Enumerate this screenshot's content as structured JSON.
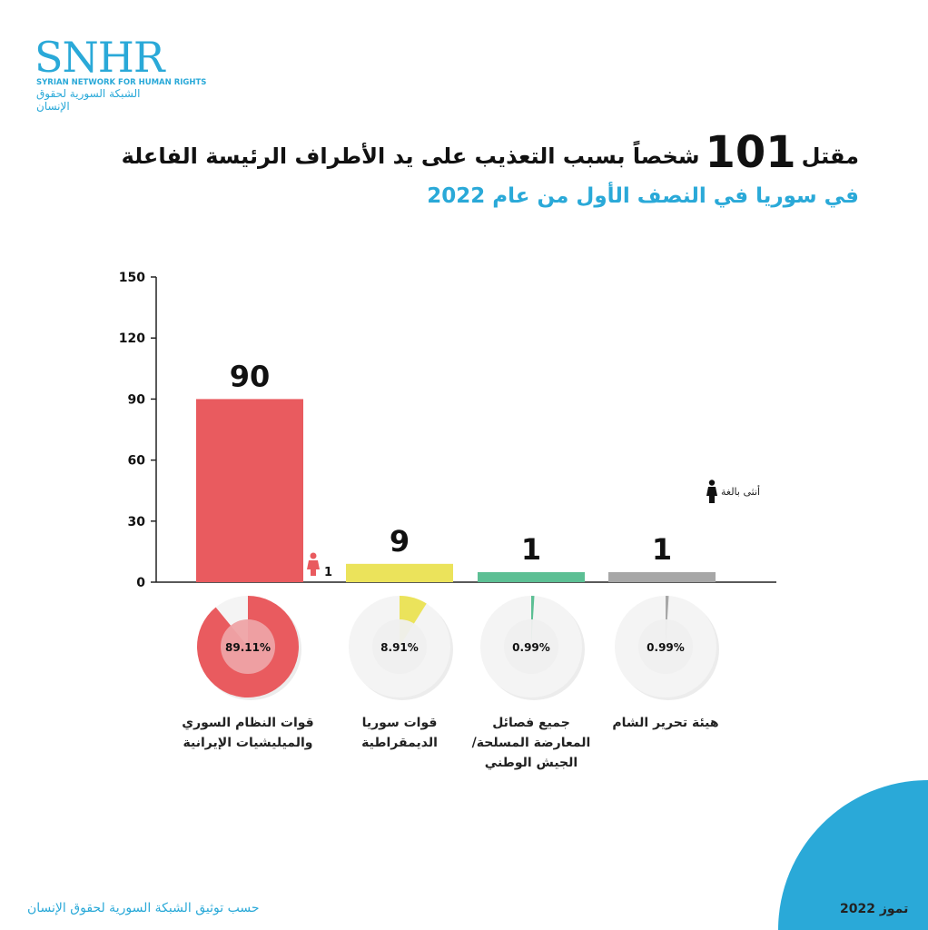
{
  "logo": {
    "main": "SNHR",
    "english": "SYRIAN NETWORK FOR HUMAN RIGHTS",
    "arabic": "الشبكة السورية لحقوق الإنسان"
  },
  "header": {
    "title_pre": "مقتل",
    "title_num": "101",
    "title_post": "شخصاً بسبب التعذيب على يد الأطراف الرئيسة الفاعلة",
    "subtitle": "في سوريا في النصف الأول من عام 2022"
  },
  "legend": {
    "female_label": "أنثى بالغة",
    "female_icon": "female-icon"
  },
  "footer": {
    "source": "حسب توثيق الشبكة السورية لحقوق الإنسان",
    "date": "تموز 2022"
  },
  "chart_data": {
    "type": "bar",
    "ylim": [
      0,
      150
    ],
    "yticks": [
      "0",
      "30",
      "60",
      "90",
      "120",
      "150"
    ],
    "categories": [
      "قوات النظام السوري والميليشيات الإيرانية",
      "قوات سوريا الديمقراطية",
      "جميع فصائل المعارضة المسلحة/الجيش الوطني",
      "هيئة تحرير الشام"
    ],
    "values": [
      90,
      9,
      1,
      1
    ],
    "value_labels": [
      "90",
      "9",
      "1",
      "1"
    ],
    "percentages": [
      "89.11%",
      "8.91%",
      "0.99%",
      "0.99%"
    ],
    "percent_values": [
      89.11,
      8.91,
      0.99,
      0.99
    ],
    "female_counts": [
      "1",
      "",
      "",
      ""
    ],
    "colors": [
      "#e95b5f",
      "#ebe35b",
      "#5cbf94",
      "#a7a7a7"
    ]
  }
}
